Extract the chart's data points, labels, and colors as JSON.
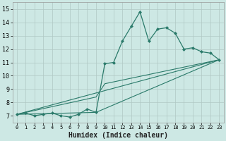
{
  "xlabel": "Humidex (Indice chaleur)",
  "bg_color": "#cde8e4",
  "grid_color": "#b0c8c4",
  "line_color": "#2a7a6a",
  "xlim": [
    -0.5,
    23.5
  ],
  "ylim": [
    6.5,
    15.5
  ],
  "xticks": [
    0,
    1,
    2,
    3,
    4,
    5,
    6,
    7,
    8,
    9,
    10,
    11,
    12,
    13,
    14,
    15,
    16,
    17,
    18,
    19,
    20,
    21,
    22,
    23
  ],
  "yticks": [
    7,
    8,
    9,
    10,
    11,
    12,
    13,
    14,
    15
  ],
  "main_x": [
    0,
    1,
    2,
    3,
    4,
    5,
    6,
    7,
    8,
    9,
    10,
    11,
    12,
    13,
    14,
    15,
    16,
    17,
    18,
    19,
    20,
    21,
    22,
    23
  ],
  "main_y": [
    7.1,
    7.2,
    7.0,
    7.1,
    7.2,
    7.0,
    6.9,
    7.1,
    7.5,
    7.25,
    10.9,
    11.0,
    12.6,
    13.7,
    14.8,
    12.6,
    13.5,
    13.6,
    13.2,
    12.0,
    12.1,
    11.8,
    11.7,
    11.2
  ],
  "trend1_x": [
    0,
    23
  ],
  "trend1_y": [
    7.1,
    11.2
  ],
  "trend2_x": [
    0,
    9,
    10,
    23
  ],
  "trend2_y": [
    7.1,
    8.4,
    9.4,
    11.2
  ],
  "trend3_x": [
    0,
    9,
    23
  ],
  "trend3_y": [
    7.1,
    7.25,
    11.2
  ]
}
